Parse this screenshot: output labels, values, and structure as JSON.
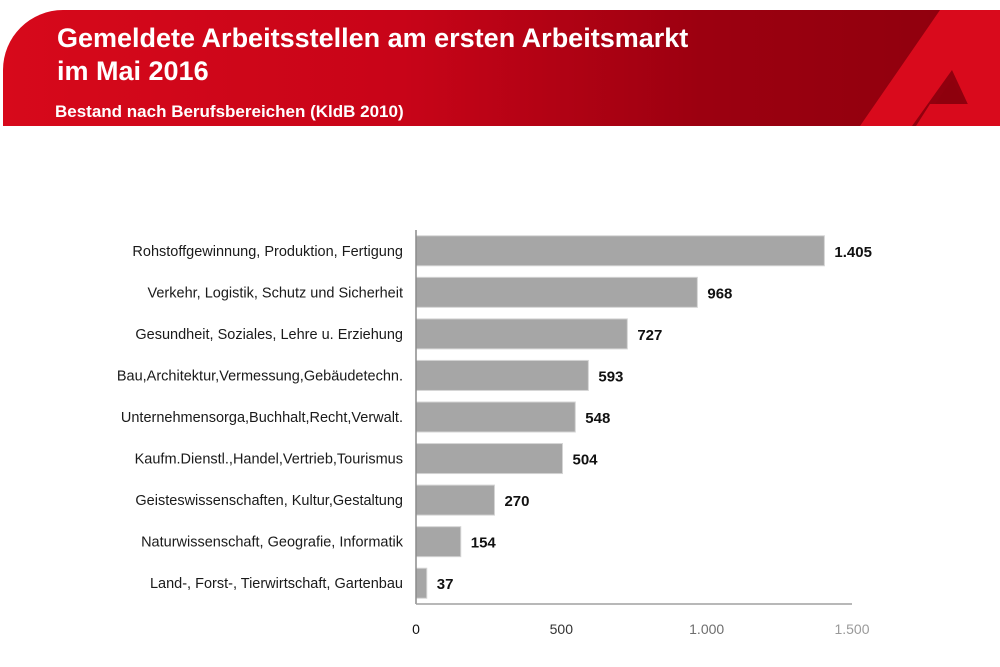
{
  "header": {
    "title_line1": "Gemeldete Arbeitsstellen am ersten Arbeitsmarkt",
    "title_line2": "im Mai 2016",
    "subtitle": "Bestand nach Berufsbereichen (KldB 2010)",
    "logo_icon": "arbeitsagentur-a-logo-icon",
    "brand_color": "#c80418",
    "brand_color_dark": "#8e000d"
  },
  "chart_data": {
    "type": "bar",
    "orientation": "horizontal",
    "title": "Gemeldete Arbeitsstellen am ersten Arbeitsmarkt im Mai 2016",
    "subtitle": "Bestand nach Berufsbereichen (KldB 2010)",
    "xlabel": "",
    "ylabel": "",
    "categories": [
      "Rohstoffgewinnung, Produktion, Fertigung",
      "Verkehr, Logistik, Schutz und Sicherheit",
      "Gesundheit, Soziales, Lehre u. Erziehung",
      "Bau,Architektur,Vermessung,Gebäudetechn.",
      "Unternehmensorga,Buchhalt,Recht,Verwalt.",
      "Kaufm.Dienstl.,Handel,Vertrieb,Tourismus",
      "Geisteswissenschaften, Kultur,Gestaltung",
      "Naturwissenschaft, Geografie, Informatik",
      "Land-, Forst-, Tierwirtschaft, Gartenbau"
    ],
    "values": [
      1405,
      968,
      727,
      593,
      548,
      504,
      270,
      154,
      37
    ],
    "value_labels": [
      "1.405",
      "968",
      "727",
      "593",
      "548",
      "504",
      "270",
      "154",
      "37"
    ],
    "xlim": [
      0,
      1500
    ],
    "x_ticks": [
      0,
      500,
      1000,
      1500
    ],
    "x_tick_labels": [
      "0",
      "500",
      "1.000",
      "1.500"
    ],
    "grid": false,
    "legend": "none",
    "bar_color": "#a6a6a6"
  }
}
